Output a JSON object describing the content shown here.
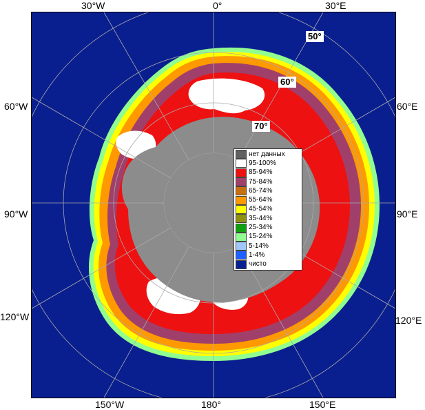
{
  "map": {
    "longitude_labels": {
      "top_30w": "30°W",
      "top_0": "0°",
      "top_30e": "30°E",
      "left_60w": "60°W",
      "right_60e": "60°E",
      "left_90w": "90°W",
      "right_90e": "90°E",
      "left_120w": "120°W",
      "right_120e": "120°E",
      "bottom_150w": "150°W",
      "bottom_180": "180°",
      "bottom_150e": "150°E"
    },
    "latitude_labels": {
      "lat_50": "50°",
      "lat_60": "60°",
      "lat_70": "70°"
    },
    "colors": {
      "ocean": "#0a1f8f",
      "land": "#8c8c8c",
      "no_data": "#606060",
      "grid": "#aaaaaa"
    }
  },
  "legend": {
    "items": [
      {
        "label": "нет данных",
        "color": "#606060"
      },
      {
        "label": "95-100%",
        "color": "#ffffff"
      },
      {
        "label": "85-94%",
        "color": "#ee1111"
      },
      {
        "label": "75-84%",
        "color": "#a0406a"
      },
      {
        "label": "65-74%",
        "color": "#c87010"
      },
      {
        "label": "55-64%",
        "color": "#ff9900"
      },
      {
        "label": "45-54%",
        "color": "#ffff00"
      },
      {
        "label": "35-44%",
        "color": "#909010"
      },
      {
        "label": "25-34%",
        "color": "#10a010"
      },
      {
        "label": "15-24%",
        "color": "#90ff90"
      },
      {
        "label": "5-14%",
        "color": "#a0c8ff"
      },
      {
        "label": "1-4%",
        "color": "#2060ff"
      },
      {
        "label": "чисто",
        "color": "#0a1f8f"
      }
    ]
  }
}
